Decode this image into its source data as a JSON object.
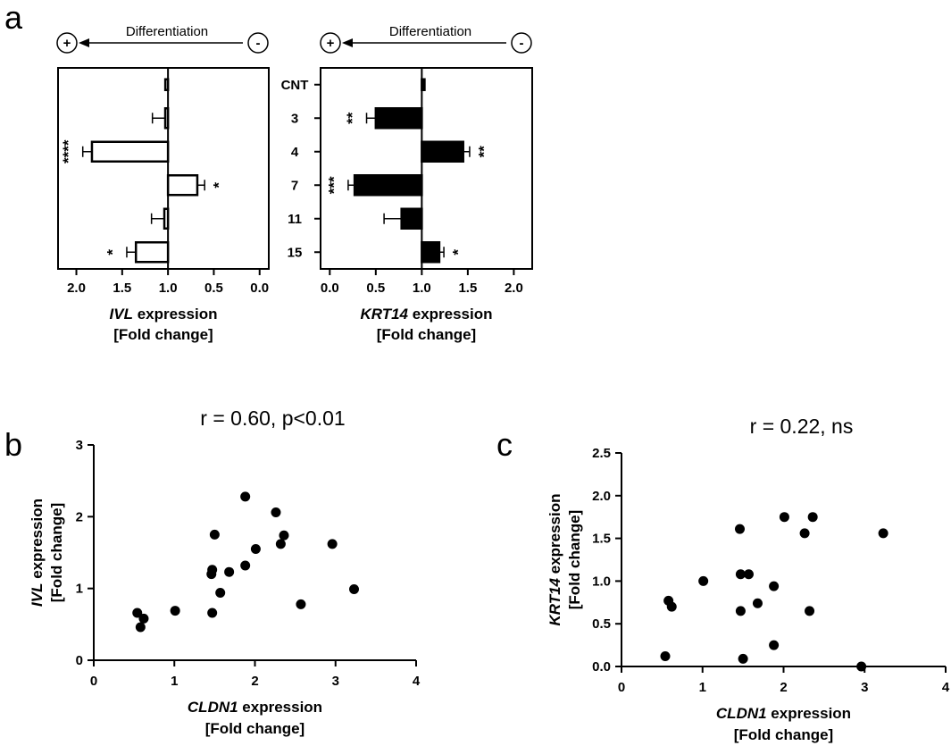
{
  "panel_labels": {
    "a": "a",
    "b": "b",
    "c": "c"
  },
  "differentiation": {
    "label": "Differentiation",
    "plus": "+",
    "minus": "-"
  },
  "chart_data": [
    {
      "id": "a-left",
      "type": "bar",
      "orientation": "horizontal",
      "categories": [
        "CNT",
        "3",
        "4",
        "7",
        "11",
        "15"
      ],
      "values": [
        1.0,
        1.03,
        1.83,
        0.68,
        1.04,
        1.35
      ],
      "errors": [
        0.0,
        0.14,
        0.1,
        0.08,
        0.14,
        0.1
      ],
      "significance": [
        "",
        "",
        "****",
        "*",
        "",
        "*"
      ],
      "bar_fill": "#ffffff",
      "xlim": [
        2.2,
        -0.1
      ],
      "xticks": [
        2.0,
        1.5,
        1.0,
        0.5,
        0.0
      ],
      "xtick_labels": [
        "2.0",
        "1.5",
        "1.0",
        "0.5",
        "0.0"
      ],
      "xlabel_gene": "IVL",
      "xlabel_rest": " expression",
      "xlabel_line2": "[Fold change]"
    },
    {
      "id": "a-right",
      "type": "bar",
      "orientation": "horizontal",
      "categories": [
        "CNT",
        "3",
        "4",
        "7",
        "11",
        "15"
      ],
      "values": [
        1.03,
        0.5,
        1.45,
        0.27,
        0.78,
        1.19
      ],
      "errors": [
        0.0,
        0.1,
        0.07,
        0.07,
        0.19,
        0.05
      ],
      "significance": [
        "",
        "**",
        "**",
        "***",
        "",
        "*"
      ],
      "bar_fill": "#000000",
      "xlim": [
        -0.1,
        2.2
      ],
      "xticks": [
        0.0,
        0.5,
        1.0,
        1.5,
        2.0
      ],
      "xtick_labels": [
        "0.0",
        "0.5",
        "1.0",
        "1.5",
        "2.0"
      ],
      "xlabel_gene": "KRT14",
      "xlabel_rest": " expression",
      "xlabel_line2": "[Fold change]"
    },
    {
      "id": "b",
      "type": "scatter",
      "title": "r = 0.60, p<0.01",
      "x": [
        0.54,
        0.58,
        0.62,
        1.01,
        1.46,
        1.47,
        1.47,
        1.5,
        1.57,
        1.68,
        1.88,
        1.88,
        2.01,
        2.26,
        2.32,
        2.36,
        2.57,
        2.96,
        3.23
      ],
      "y": [
        0.66,
        0.46,
        0.58,
        0.69,
        1.2,
        1.26,
        0.66,
        1.75,
        0.94,
        1.23,
        1.32,
        2.28,
        1.55,
        2.06,
        1.62,
        1.74,
        0.78,
        1.62,
        0.99
      ],
      "xlim": [
        0,
        4
      ],
      "ylim": [
        0,
        3
      ],
      "xticks": [
        0,
        1,
        2,
        3,
        4
      ],
      "yticks": [
        0,
        1,
        2,
        3
      ],
      "xlabel_gene": "CLDN1",
      "xlabel_rest": " expression",
      "xlabel_line2": "[Fold change]",
      "ylabel_gene": "IVL",
      "ylabel_rest": " expression",
      "ylabel_line2": "[Fold change]"
    },
    {
      "id": "c",
      "type": "scatter",
      "title": "r = 0.22, ns",
      "x": [
        0.54,
        0.58,
        0.62,
        1.01,
        1.46,
        1.47,
        1.47,
        1.5,
        1.57,
        1.68,
        1.88,
        1.88,
        2.01,
        2.26,
        2.32,
        2.36,
        2.96,
        3.23
      ],
      "y": [
        0.12,
        0.77,
        0.7,
        1.0,
        1.61,
        1.08,
        0.65,
        0.09,
        1.08,
        0.74,
        0.94,
        0.25,
        1.75,
        1.56,
        0.65,
        1.75,
        0.0,
        1.56
      ],
      "xlim": [
        0,
        4
      ],
      "ylim": [
        0,
        2.5
      ],
      "xticks": [
        0,
        1,
        2,
        3,
        4
      ],
      "yticks": [
        0.0,
        0.5,
        1.0,
        1.5,
        2.0,
        2.5
      ],
      "ytick_labels": [
        "0.0",
        "0.5",
        "1.0",
        "1.5",
        "2.0",
        "2.5"
      ],
      "xlabel_gene": "CLDN1",
      "xlabel_rest": " expression",
      "xlabel_line2": "[Fold change]",
      "ylabel_gene": "KRT14",
      "ylabel_rest": " expression",
      "ylabel_line2": "[Fold change]"
    }
  ]
}
